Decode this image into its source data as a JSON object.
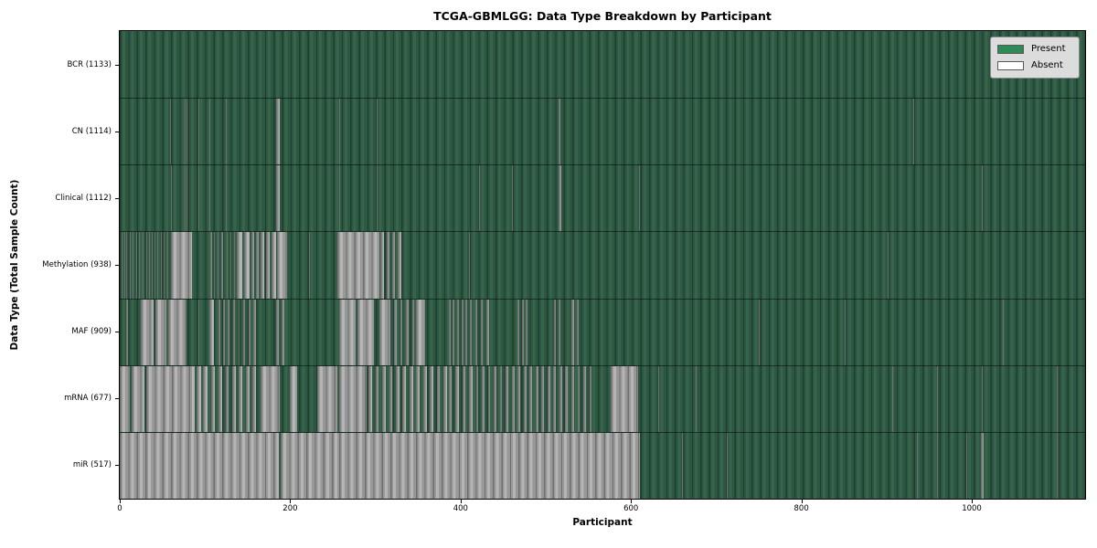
{
  "chart_data": {
    "type": "heatmap",
    "title": "TCGA-GBMLGG: Data Type Breakdown by Participant",
    "xlabel": "Participant",
    "ylabel": "Data Type (Total Sample Count)",
    "x_ticks": [
      0,
      200,
      400,
      600,
      800,
      1000
    ],
    "x_max": 1133,
    "legend": [
      {
        "key": "present",
        "label": "Present"
      },
      {
        "key": "absent",
        "label": "Absent"
      }
    ],
    "colors": {
      "present": "#2e8b57",
      "absent": "#ffffff",
      "legend_bg": "#dcdcdc"
    },
    "rows": [
      {
        "key": "bcr",
        "label": "BCR (1133)",
        "present_count": 1133,
        "absent_runs": []
      },
      {
        "key": "cn",
        "label": "CN (1114)",
        "present_count": 1114,
        "absent_runs": [
          [
            59,
            60
          ],
          [
            76,
            77
          ],
          [
            78,
            79
          ],
          [
            92,
            93
          ],
          [
            105,
            106
          ],
          [
            124,
            125
          ],
          [
            183,
            188
          ],
          [
            257,
            258
          ],
          [
            301,
            303
          ],
          [
            515,
            517
          ],
          [
            931,
            932
          ]
        ]
      },
      {
        "key": "clinical",
        "label": "Clinical (1112)",
        "present_count": 1112,
        "absent_runs": [
          [
            60,
            61
          ],
          [
            76,
            77
          ],
          [
            78,
            79
          ],
          [
            92,
            93
          ],
          [
            105,
            106
          ],
          [
            124,
            125
          ],
          [
            183,
            188
          ],
          [
            257,
            258
          ],
          [
            301,
            303
          ],
          [
            422,
            423
          ],
          [
            460,
            461
          ],
          [
            515,
            518
          ],
          [
            609,
            610
          ],
          [
            1012,
            1013
          ]
        ]
      },
      {
        "key": "methylation",
        "label": "Methylation (938)",
        "present_count": 938,
        "absent_runs": [
          [
            2,
            3
          ],
          [
            5,
            6
          ],
          [
            8,
            9
          ],
          [
            12,
            13
          ],
          [
            15,
            16
          ],
          [
            19,
            20
          ],
          [
            23,
            24
          ],
          [
            27,
            28
          ],
          [
            31,
            32
          ],
          [
            34,
            35
          ],
          [
            38,
            39
          ],
          [
            41,
            42
          ],
          [
            44,
            45
          ],
          [
            48,
            49
          ],
          [
            52,
            53
          ],
          [
            56,
            57
          ],
          [
            60,
            85
          ],
          [
            106,
            108
          ],
          [
            111,
            112
          ],
          [
            115,
            116
          ],
          [
            119,
            121
          ],
          [
            125,
            126
          ],
          [
            130,
            131
          ],
          [
            134,
            135
          ],
          [
            137,
            144
          ],
          [
            146,
            152
          ],
          [
            154,
            158
          ],
          [
            160,
            163
          ],
          [
            165,
            170
          ],
          [
            172,
            176
          ],
          [
            178,
            183
          ],
          [
            185,
            196
          ],
          [
            222,
            223
          ],
          [
            255,
            305
          ],
          [
            306,
            310
          ],
          [
            313,
            317
          ],
          [
            320,
            323
          ],
          [
            326,
            330
          ],
          [
            410,
            411
          ],
          [
            901,
            902
          ]
        ]
      },
      {
        "key": "maf",
        "label": "MAF (909)",
        "present_count": 909,
        "absent_runs": [
          [
            8,
            10
          ],
          [
            25,
            40
          ],
          [
            42,
            55
          ],
          [
            57,
            78
          ],
          [
            92,
            93
          ],
          [
            105,
            110
          ],
          [
            116,
            118
          ],
          [
            121,
            123
          ],
          [
            127,
            129
          ],
          [
            133,
            135
          ],
          [
            139,
            141
          ],
          [
            145,
            147
          ],
          [
            151,
            153
          ],
          [
            157,
            160
          ],
          [
            183,
            187
          ],
          [
            190,
            193
          ],
          [
            258,
            277
          ],
          [
            279,
            298
          ],
          [
            305,
            318
          ],
          [
            322,
            325
          ],
          [
            329,
            332
          ],
          [
            336,
            339
          ],
          [
            343,
            346
          ],
          [
            348,
            358
          ],
          [
            386,
            388
          ],
          [
            391,
            393
          ],
          [
            396,
            398
          ],
          [
            401,
            403
          ],
          [
            406,
            408
          ],
          [
            411,
            413
          ],
          [
            417,
            419
          ],
          [
            424,
            426
          ],
          [
            430,
            433
          ],
          [
            467,
            469
          ],
          [
            472,
            474
          ],
          [
            476,
            478
          ],
          [
            510,
            512
          ],
          [
            515,
            517
          ],
          [
            530,
            533
          ],
          [
            536,
            539
          ],
          [
            750,
            751
          ],
          [
            851,
            852
          ],
          [
            1036,
            1037
          ]
        ]
      },
      {
        "key": "mrna",
        "label": "mRNA (677)",
        "present_count": 677,
        "absent_runs": [
          [
            0,
            12
          ],
          [
            14,
            29
          ],
          [
            31,
            88
          ],
          [
            90,
            95
          ],
          [
            98,
            103
          ],
          [
            107,
            112
          ],
          [
            116,
            120
          ],
          [
            124,
            128
          ],
          [
            132,
            136
          ],
          [
            140,
            144
          ],
          [
            148,
            152
          ],
          [
            156,
            160
          ],
          [
            165,
            188
          ],
          [
            200,
            208
          ],
          [
            232,
            255
          ],
          [
            257,
            290
          ],
          [
            292,
            296
          ],
          [
            300,
            304
          ],
          [
            308,
            312
          ],
          [
            316,
            320
          ],
          [
            324,
            328
          ],
          [
            332,
            336
          ],
          [
            340,
            344
          ],
          [
            348,
            352
          ],
          [
            356,
            360
          ],
          [
            364,
            368
          ],
          [
            372,
            376
          ],
          [
            380,
            384
          ],
          [
            386,
            390
          ],
          [
            394,
            398
          ],
          [
            402,
            406
          ],
          [
            410,
            414
          ],
          [
            418,
            421
          ],
          [
            425,
            428
          ],
          [
            432,
            435
          ],
          [
            439,
            442
          ],
          [
            446,
            449
          ],
          [
            453,
            456
          ],
          [
            460,
            463
          ],
          [
            467,
            470
          ],
          [
            474,
            477
          ],
          [
            481,
            484
          ],
          [
            488,
            491
          ],
          [
            495,
            498
          ],
          [
            502,
            505
          ],
          [
            509,
            512
          ],
          [
            516,
            519
          ],
          [
            523,
            526
          ],
          [
            530,
            533
          ],
          [
            537,
            540
          ],
          [
            544,
            547
          ],
          [
            551,
            554
          ],
          [
            576,
            608
          ],
          [
            632,
            633
          ],
          [
            676,
            677
          ],
          [
            907,
            908
          ],
          [
            959,
            960
          ],
          [
            1012,
            1013
          ],
          [
            1100,
            1101
          ]
        ]
      },
      {
        "key": "mir",
        "label": "miR (517)",
        "present_count": 517,
        "absent_runs": [
          [
            0,
            187
          ],
          [
            189,
            257
          ],
          [
            258,
            610
          ],
          [
            660,
            661
          ],
          [
            712,
            713
          ],
          [
            936,
            937
          ],
          [
            959,
            960
          ],
          [
            994,
            995
          ],
          [
            1011,
            1014
          ],
          [
            1100,
            1101
          ]
        ]
      }
    ]
  }
}
